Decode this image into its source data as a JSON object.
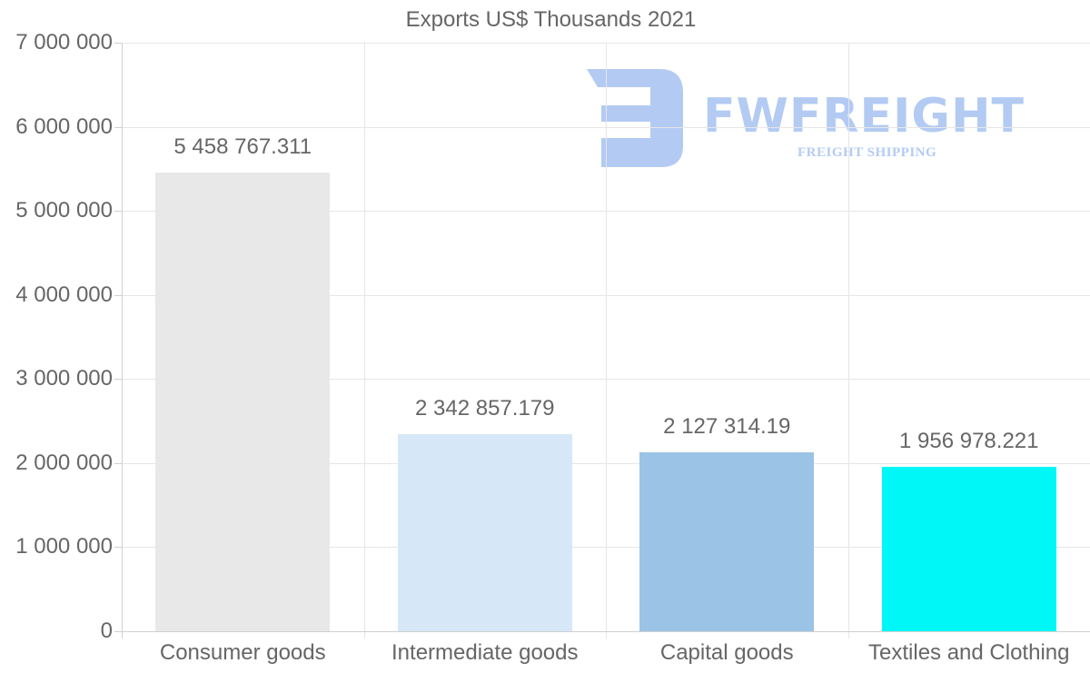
{
  "chart_data": {
    "type": "bar",
    "title": "Exports US$ Thousands 2021",
    "xlabel": "",
    "ylabel": "",
    "categories": [
      "Consumer goods",
      "Intermediate goods",
      "Capital goods",
      "Textiles and Clothing"
    ],
    "values": [
      5458767.311,
      2342857.179,
      2127314.19,
      1956978.221
    ],
    "value_labels": [
      "5 458 767.311",
      "2 342 857.179",
      "2 127 314.19",
      "1 956 978.221"
    ],
    "colors": [
      "#e8e8e8",
      "#d6e8f8",
      "#9bc3e6",
      "#00f7f7"
    ],
    "ylim": [
      0,
      7000000
    ],
    "yticks": [
      0,
      1000000,
      2000000,
      3000000,
      4000000,
      5000000,
      6000000,
      7000000
    ],
    "ytick_labels": [
      "0",
      "1 000 000",
      "2 000 000",
      "3 000 000",
      "4 000 000",
      "5 000 000",
      "6 000 000",
      "7 000 000"
    ],
    "grid": true,
    "legend": "none"
  },
  "watermark": {
    "brand": "FWFREIGHT",
    "tagline": "FREIGHT SHIPPING",
    "color": "#b3cbf3"
  }
}
